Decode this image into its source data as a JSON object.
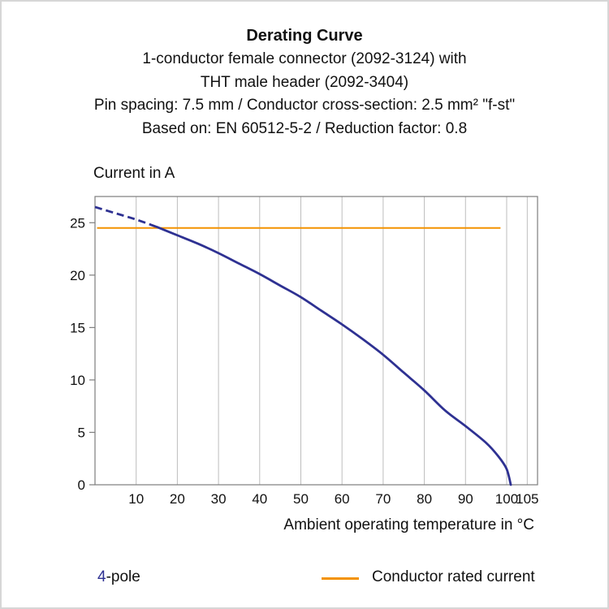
{
  "header": {
    "title": "Derating Curve",
    "subtitle_lines": [
      "1-conductor female connector (2092-3124) with",
      "THT male header (2092-3404)",
      "Pin spacing: 7.5 mm / Conductor cross-section: 2.5 mm² \"f-st\"",
      "Based on: EN 60512-5-2 / Reduction factor: 0.8"
    ]
  },
  "axes": {
    "y_title": "Current in A",
    "x_title": "Ambient operating temperature in °C"
  },
  "legend": {
    "pole_value": "4",
    "pole_suffix": "-pole",
    "rated_label": "Conductor rated current"
  },
  "colors": {
    "curve_blue": "#2e3192",
    "rated_orange": "#f39200",
    "grid_gray": "#bdbdbd",
    "axis_gray": "#7d7d7d"
  },
  "chart_data": {
    "type": "line",
    "title": "Derating Curve",
    "xlabel": "Ambient operating temperature in °C",
    "ylabel": "Current in A",
    "xlim": [
      0,
      107.5
    ],
    "ylim": [
      0,
      27.5
    ],
    "x_ticks": [
      10,
      20,
      30,
      40,
      50,
      60,
      70,
      80,
      90,
      100,
      105
    ],
    "y_ticks": [
      0,
      5,
      10,
      15,
      20,
      25
    ],
    "grid": "vertical",
    "grid_color": "#bdbdbd",
    "axis_color": "#7d7d7d",
    "legend_position": "bottom",
    "series": [
      {
        "name": "4-pole",
        "color": "#2e3192",
        "line_style": "dashed-below-split-then-solid",
        "style_split_x": 15,
        "points": [
          [
            0,
            26.5
          ],
          [
            5,
            25.9
          ],
          [
            10,
            25.3
          ],
          [
            15,
            24.6
          ],
          [
            20,
            23.8
          ],
          [
            25,
            23.0
          ],
          [
            30,
            22.1
          ],
          [
            35,
            21.1
          ],
          [
            40,
            20.1
          ],
          [
            45,
            19.0
          ],
          [
            50,
            17.9
          ],
          [
            55,
            16.6
          ],
          [
            60,
            15.3
          ],
          [
            65,
            13.9
          ],
          [
            70,
            12.4
          ],
          [
            75,
            10.7
          ],
          [
            80,
            9.0
          ],
          [
            85,
            7.1
          ],
          [
            90,
            5.6
          ],
          [
            95,
            4.0
          ],
          [
            98,
            2.7
          ],
          [
            100,
            1.5
          ],
          [
            101,
            0
          ]
        ]
      },
      {
        "name": "Conductor rated current",
        "type": "hline",
        "color": "#f39200",
        "y": 24.5,
        "x_start": 0.5,
        "x_end": 98.5
      }
    ]
  }
}
